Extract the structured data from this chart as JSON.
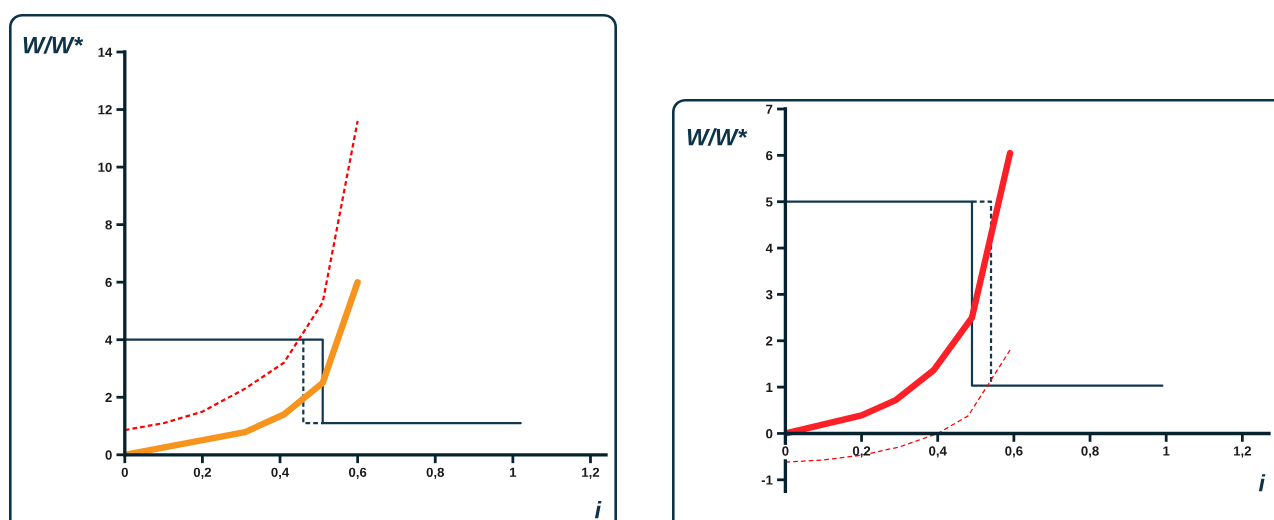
{
  "chart_data": [
    {
      "type": "line",
      "ylabel": "W/W*",
      "xlabel": "i",
      "xlim": [
        0,
        1.24
      ],
      "ylim": [
        0,
        14
      ],
      "xticks": [
        0,
        {
          "value": 0.2,
          "label": "0,2"
        },
        {
          "value": 0.4,
          "label": "0,4"
        },
        {
          "value": 0.6,
          "label": "0,6"
        },
        {
          "value": 0.8,
          "label": "0,8"
        },
        1,
        {
          "value": 1.2,
          "label": "1,2"
        }
      ],
      "yticks": [
        0,
        2,
        4,
        6,
        8,
        10,
        12,
        14
      ],
      "series": [
        {
          "x": [
            0,
            0.51,
            0.51,
            1.02
          ],
          "values": [
            4,
            4,
            1.1,
            1.1
          ],
          "color": "#12384f",
          "line_style": "solid"
        },
        {
          "x": [
            0.46,
            0.46,
            0.51
          ],
          "values": [
            4,
            1.1,
            1.1
          ],
          "color": "#12384f",
          "line_style": "dashed"
        },
        {
          "x": [
            0,
            0.1,
            0.2,
            0.31,
            0.41,
            0.51,
            0.6
          ],
          "values": [
            0.86,
            1.1,
            1.5,
            2.3,
            3.2,
            5.3,
            11.6
          ],
          "color": "#ff0000",
          "line_style": "dashed"
        },
        {
          "x": [
            0,
            0.31,
            0.41,
            0.51,
            0.6
          ],
          "values": [
            0,
            0.79,
            1.4,
            2.5,
            6
          ],
          "color": "#f7941d",
          "line_style": "solid"
        }
      ]
    },
    {
      "type": "line",
      "ylabel": "W/W*",
      "xlabel": "i",
      "xlim": [
        0,
        1.27
      ],
      "ylim": [
        -1.25,
        7
      ],
      "xticks": [
        0,
        {
          "value": 0.2,
          "label": "0,2"
        },
        {
          "value": 0.4,
          "label": "0,4"
        },
        {
          "value": 0.6,
          "label": "0,6"
        },
        {
          "value": 0.8,
          "label": "0,8"
        },
        1,
        {
          "value": 1.2,
          "label": "1,2"
        }
      ],
      "yticks": [
        -1,
        0,
        1,
        2,
        3,
        4,
        5,
        6,
        7
      ],
      "series": [
        {
          "x": [
            0,
            0.49,
            0.49,
            0.99
          ],
          "values": [
            5,
            5,
            1.03,
            1.03
          ],
          "color": "#12384f",
          "line_style": "solid"
        },
        {
          "x": [
            0.49,
            0.54,
            0.54
          ],
          "values": [
            5,
            5,
            1.03
          ],
          "color": "#12384f",
          "line_style": "dashed"
        },
        {
          "x": [
            0,
            0.1,
            0.2,
            0.3,
            0.4,
            0.48,
            0.59
          ],
          "values": [
            -0.62,
            -0.57,
            -0.47,
            -0.29,
            0,
            0.38,
            1.8
          ],
          "color": "#ff0000",
          "line_style": "dashed"
        },
        {
          "x": [
            0,
            0.2,
            0.29,
            0.39,
            0.49,
            0.59
          ],
          "values": [
            0,
            0.39,
            0.72,
            1.37,
            2.5,
            6.05
          ],
          "color": "#fe2027",
          "line_style": "solid"
        }
      ]
    }
  ]
}
